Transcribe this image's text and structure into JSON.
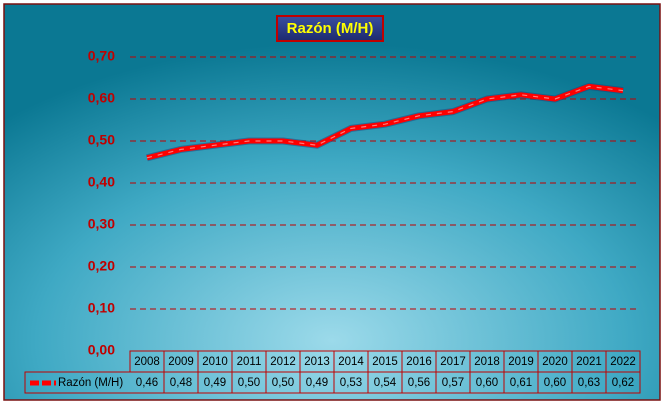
{
  "chart_data": {
    "type": "line",
    "title": "Razón (M/H)",
    "categories": [
      "2008",
      "2009",
      "2010",
      "2011",
      "2012",
      "2013",
      "2014",
      "2015",
      "2016",
      "2017",
      "2018",
      "2019",
      "2020",
      "2021",
      "2022"
    ],
    "series": [
      {
        "name": "Razón (M/H)",
        "color": "#ff0000",
        "values": [
          0.46,
          0.48,
          0.49,
          0.5,
          0.5,
          0.49,
          0.53,
          0.54,
          0.56,
          0.57,
          0.6,
          0.61,
          0.6,
          0.63,
          0.62
        ],
        "value_labels": [
          "0,46",
          "0,48",
          "0,49",
          "0,50",
          "0,50",
          "0,49",
          "0,53",
          "0,54",
          "0,56",
          "0,57",
          "0,60",
          "0,61",
          "0,60",
          "0,63",
          "0,62"
        ]
      }
    ],
    "ylim": [
      0,
      0.7
    ],
    "yticks": [
      {
        "value": 0,
        "label": "0,00"
      },
      {
        "value": 0.1,
        "label": "0,10"
      },
      {
        "value": 0.2,
        "label": "0,20"
      },
      {
        "value": 0.3,
        "label": "0,30"
      },
      {
        "value": 0.4,
        "label": "0,40"
      },
      {
        "value": 0.5,
        "label": "0,50"
      },
      {
        "value": 0.6,
        "label": "0,60"
      },
      {
        "value": 0.7,
        "label": "0,70"
      }
    ],
    "grid": true
  }
}
